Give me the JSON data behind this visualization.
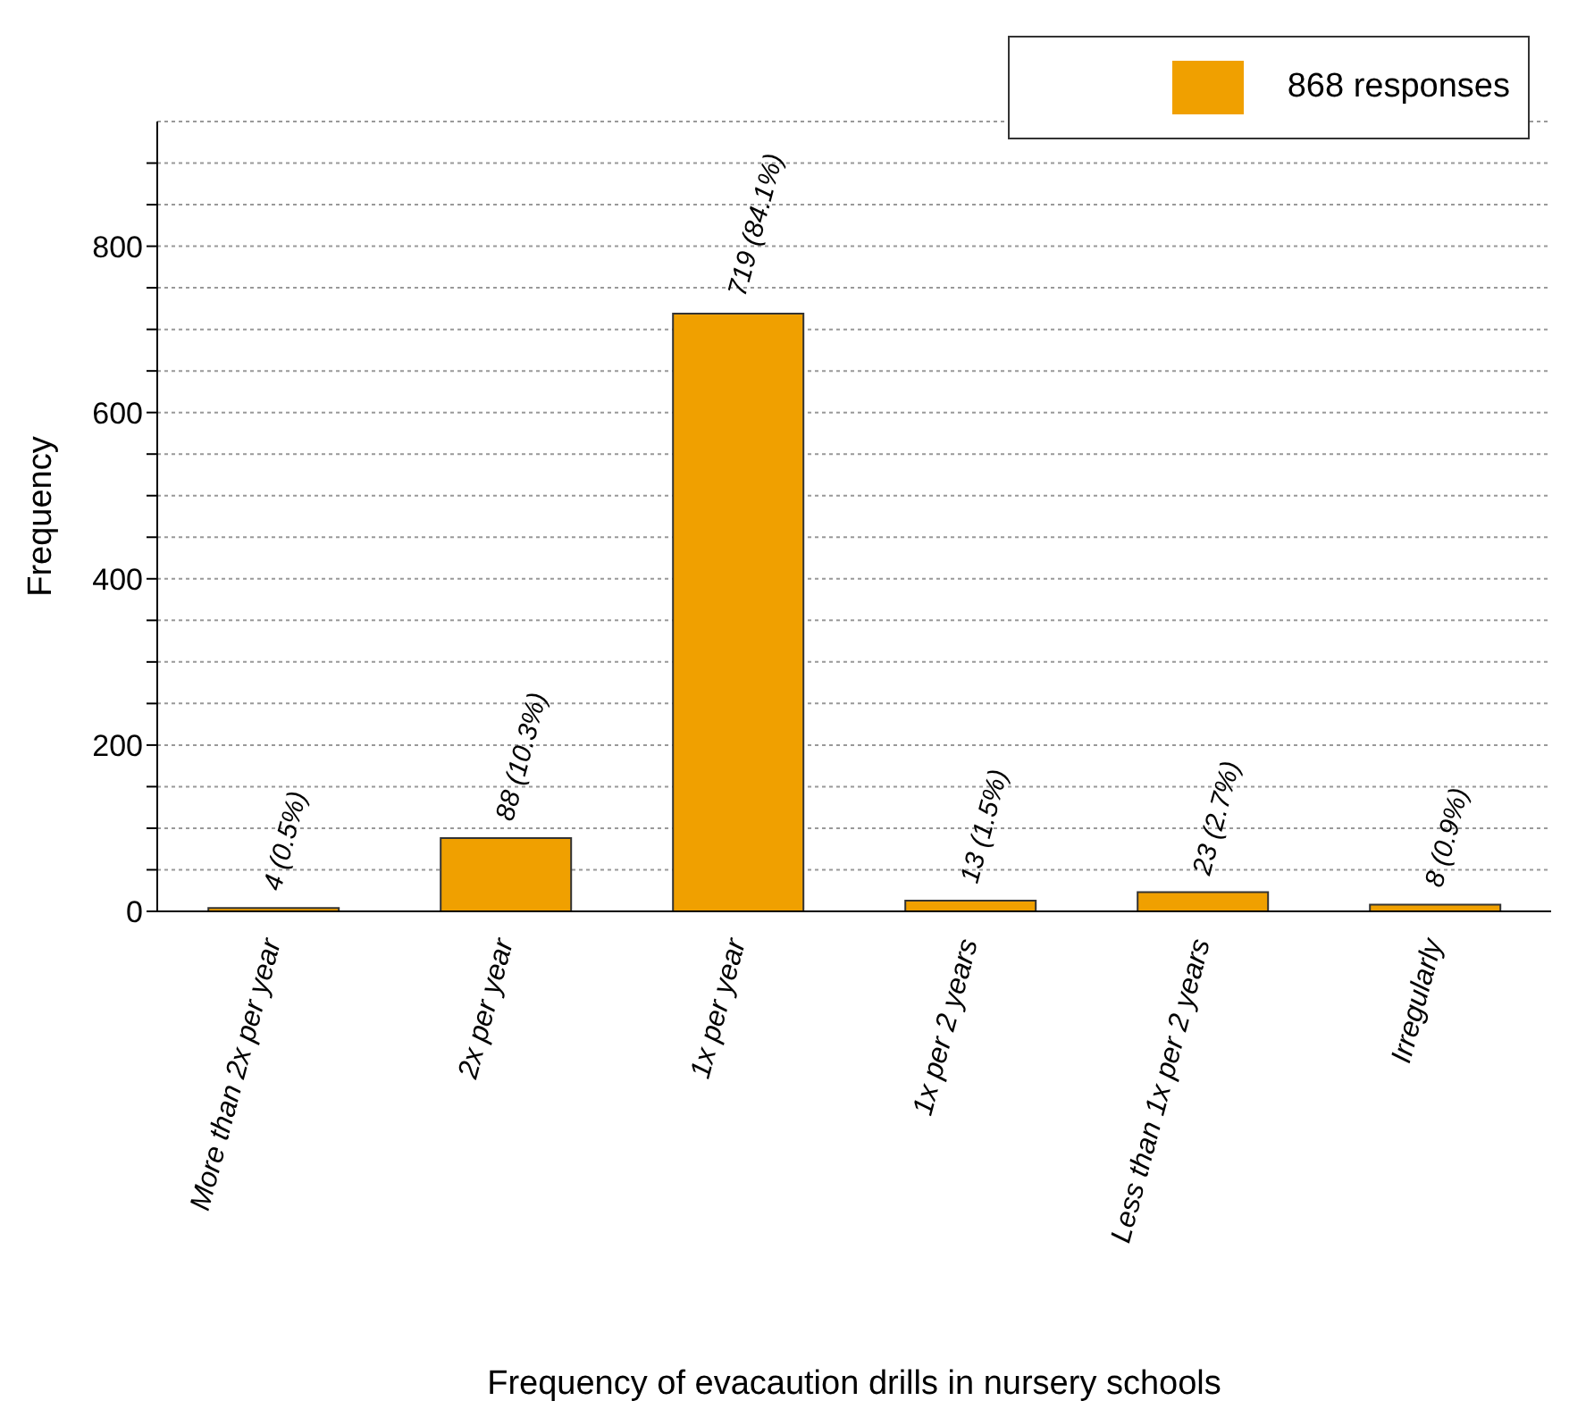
{
  "chart_data": {
    "type": "bar",
    "xlabel": "Frequency of evacaution drills in nursery schools",
    "ylabel": "Frequency",
    "categories": [
      "More than 2x per year",
      "2x per year",
      "1x per year",
      "1x per 2 years",
      "Less than 1x per 2 years",
      "Irregularly"
    ],
    "series": [
      {
        "name": "868 responses",
        "color": "#f0a000",
        "values": [
          4,
          88,
          719,
          13,
          23,
          8
        ],
        "value_labels": [
          "4 (0.5%)",
          "88 (10.3%)",
          "719 (84.1%)",
          "13 (1.5%)",
          "23 (2.7%)",
          "8 (0.9%)"
        ]
      }
    ],
    "ylim": [
      0,
      950
    ],
    "yticks": [
      0,
      {
        "value": 50,
        "label": null
      },
      {
        "value": 100,
        "label": null
      },
      {
        "value": 150,
        "label": null
      },
      200,
      {
        "value": 250,
        "label": null
      },
      {
        "value": 300,
        "label": null
      },
      {
        "value": 350,
        "label": null
      },
      400,
      {
        "value": 450,
        "label": null
      },
      {
        "value": 500,
        "label": null
      },
      {
        "value": 550,
        "label": null
      },
      600,
      {
        "value": 650,
        "label": null
      },
      {
        "value": 700,
        "label": null
      },
      {
        "value": 750,
        "label": null
      },
      800,
      {
        "value": 850,
        "label": null
      },
      {
        "value": 900,
        "label": null
      }
    ],
    "grid": "y",
    "legend": "top right"
  }
}
